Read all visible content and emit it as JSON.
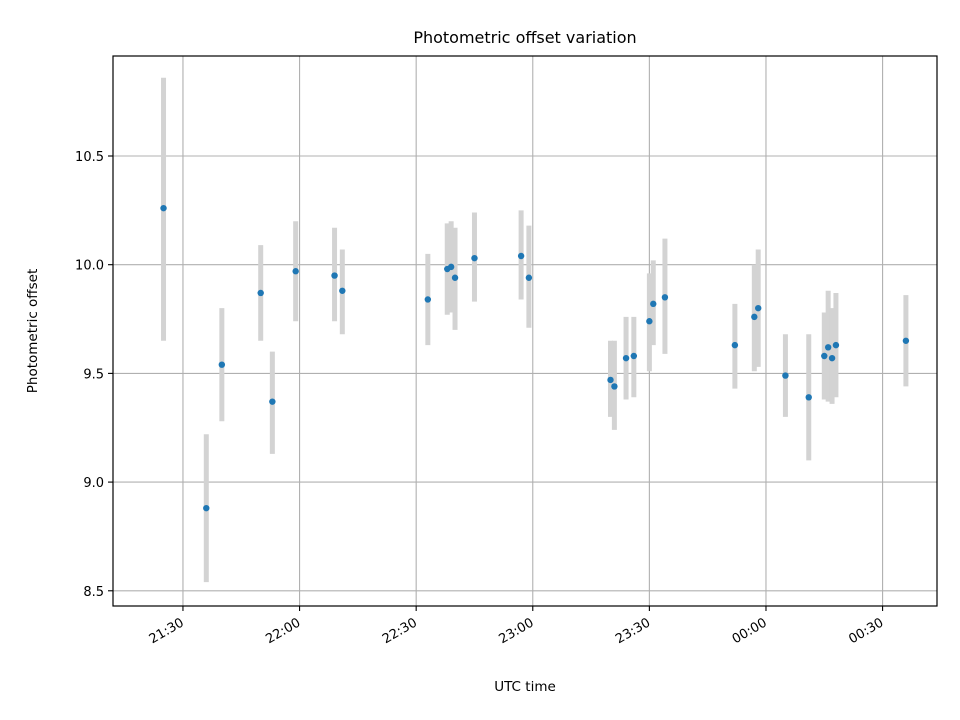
{
  "chart_data": {
    "type": "scatter",
    "title": "Photometric offset variation",
    "xlabel": "UTC time",
    "ylabel": "Photometric offset",
    "x_axis_kind": "time",
    "xlim": [
      "21:12",
      "00:44"
    ],
    "ylim": [
      8.43,
      10.96
    ],
    "x_ticks": [
      "21:30",
      "22:00",
      "22:30",
      "23:00",
      "23:30",
      "00:00",
      "00:30"
    ],
    "y_ticks": [
      "8.5",
      "9.0",
      "9.5",
      "10.0",
      "10.5"
    ],
    "grid": true,
    "colors": {
      "point": "#1f77b4",
      "errorbar": "#d3d3d3",
      "grid": "#b0b0b0"
    },
    "series": [
      {
        "points": [
          {
            "x": "21:25",
            "y": 10.26,
            "lo": 9.65,
            "hi": 10.86
          },
          {
            "x": "21:36",
            "y": 8.88,
            "lo": 8.54,
            "hi": 9.22
          },
          {
            "x": "21:40",
            "y": 9.54,
            "lo": 9.28,
            "hi": 9.8
          },
          {
            "x": "21:50",
            "y": 9.87,
            "lo": 9.65,
            "hi": 10.09
          },
          {
            "x": "21:53",
            "y": 9.37,
            "lo": 9.13,
            "hi": 9.6
          },
          {
            "x": "21:59",
            "y": 9.97,
            "lo": 9.74,
            "hi": 10.2
          },
          {
            "x": "22:09",
            "y": 9.95,
            "lo": 9.74,
            "hi": 10.17
          },
          {
            "x": "22:11",
            "y": 9.88,
            "lo": 9.68,
            "hi": 10.07
          },
          {
            "x": "22:33",
            "y": 9.84,
            "lo": 9.63,
            "hi": 10.05
          },
          {
            "x": "22:38",
            "y": 9.98,
            "lo": 9.77,
            "hi": 10.19
          },
          {
            "x": "22:39",
            "y": 9.99,
            "lo": 9.78,
            "hi": 10.2
          },
          {
            "x": "22:40",
            "y": 9.94,
            "lo": 9.7,
            "hi": 10.17
          },
          {
            "x": "22:45",
            "y": 10.03,
            "lo": 9.83,
            "hi": 10.24
          },
          {
            "x": "22:57",
            "y": 10.04,
            "lo": 9.84,
            "hi": 10.25
          },
          {
            "x": "22:59",
            "y": 9.94,
            "lo": 9.71,
            "hi": 10.18
          },
          {
            "x": "23:20",
            "y": 9.47,
            "lo": 9.3,
            "hi": 9.65
          },
          {
            "x": "23:21",
            "y": 9.44,
            "lo": 9.24,
            "hi": 9.65
          },
          {
            "x": "23:24",
            "y": 9.57,
            "lo": 9.38,
            "hi": 9.76
          },
          {
            "x": "23:26",
            "y": 9.58,
            "lo": 9.39,
            "hi": 9.76
          },
          {
            "x": "23:30",
            "y": 9.74,
            "lo": 9.51,
            "hi": 9.96
          },
          {
            "x": "23:31",
            "y": 9.82,
            "lo": 9.63,
            "hi": 10.02
          },
          {
            "x": "23:34",
            "y": 9.85,
            "lo": 9.59,
            "hi": 10.12
          },
          {
            "x": "23:52",
            "y": 9.63,
            "lo": 9.43,
            "hi": 9.82
          },
          {
            "x": "23:57",
            "y": 9.76,
            "lo": 9.51,
            "hi": 10.0
          },
          {
            "x": "23:58",
            "y": 9.8,
            "lo": 9.53,
            "hi": 10.07
          },
          {
            "x": "00:05",
            "y": 9.49,
            "lo": 9.3,
            "hi": 9.68
          },
          {
            "x": "00:11",
            "y": 9.39,
            "lo": 9.1,
            "hi": 9.68
          },
          {
            "x": "00:15",
            "y": 9.58,
            "lo": 9.38,
            "hi": 9.78
          },
          {
            "x": "00:16",
            "y": 9.62,
            "lo": 9.37,
            "hi": 9.88
          },
          {
            "x": "00:17",
            "y": 9.57,
            "lo": 9.36,
            "hi": 9.8
          },
          {
            "x": "00:18",
            "y": 9.63,
            "lo": 9.39,
            "hi": 9.87
          },
          {
            "x": "00:36",
            "y": 9.65,
            "lo": 9.44,
            "hi": 9.86
          }
        ]
      }
    ]
  }
}
